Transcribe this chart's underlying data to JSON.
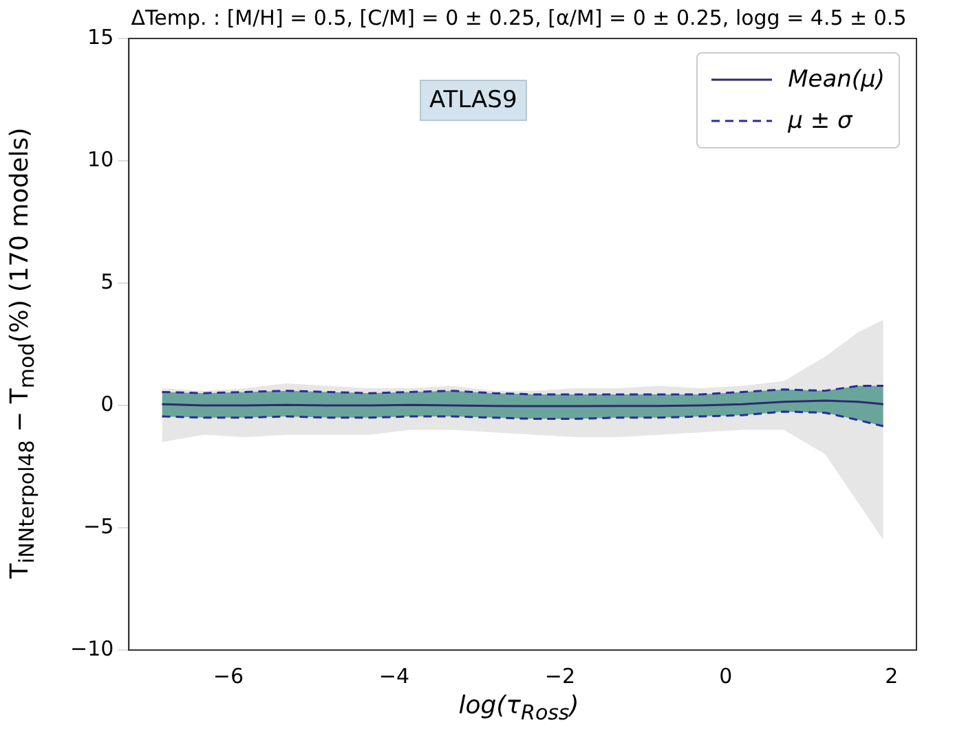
{
  "chart_data": {
    "type": "line",
    "title": "ΔTemp. : [M/H] = 0.5, [C/M] = 0 ± 0.25, [α/M] = 0 ± 0.25, logg = 4.5 ± 0.5",
    "xlabel": "log(τ$_{Ross}$)",
    "ylabel": "T$_{iNNterpol48}$ − T$_{mod}$(%) (170 models)",
    "annotations": [
      "ATLAS9"
    ],
    "x": [
      -6.8,
      -6.3,
      -5.8,
      -5.3,
      -4.8,
      -4.3,
      -3.8,
      -3.3,
      -2.8,
      -2.3,
      -1.8,
      -1.3,
      -0.8,
      -0.3,
      0.2,
      0.7,
      1.2,
      1.6,
      1.9
    ],
    "series": [
      {
        "name": "Mean(μ)",
        "color": "#2e2a6e",
        "line_style": "solid",
        "values": [
          0.05,
          0.0,
          0.0,
          0.02,
          0.0,
          0.0,
          0.02,
          0.0,
          -0.02,
          -0.03,
          -0.03,
          -0.02,
          -0.02,
          0.0,
          0.05,
          0.15,
          0.2,
          0.15,
          0.05
        ],
        "lower": [
          -1.5,
          -1.2,
          -1.3,
          -1.2,
          -1.2,
          -1.2,
          -1.0,
          -1.0,
          -1.1,
          -1.2,
          -1.3,
          -1.3,
          -1.2,
          -1.1,
          -1.0,
          -1.0,
          -2.0,
          -4.0,
          -5.5
        ],
        "upper": [
          0.7,
          0.6,
          0.7,
          0.9,
          0.8,
          0.7,
          0.7,
          0.8,
          0.6,
          0.6,
          0.7,
          0.7,
          0.8,
          0.7,
          0.8,
          1.0,
          2.0,
          3.0,
          3.5
        ]
      },
      {
        "name": "μ ± σ",
        "color": "#2b2b9a",
        "line_style": "dashed",
        "values": [
          0.55,
          0.5,
          0.55,
          0.6,
          0.55,
          0.5,
          0.55,
          0.6,
          0.5,
          0.45,
          0.45,
          0.45,
          0.45,
          0.45,
          0.55,
          0.65,
          0.6,
          0.8,
          0.8
        ],
        "lower": [
          -0.45,
          -0.5,
          -0.5,
          -0.45,
          -0.5,
          -0.5,
          -0.45,
          -0.45,
          -0.5,
          -0.55,
          -0.55,
          -0.5,
          -0.5,
          -0.45,
          -0.4,
          -0.25,
          -0.3,
          -0.6,
          -0.85
        ],
        "upper": [
          0.55,
          0.5,
          0.55,
          0.6,
          0.55,
          0.5,
          0.55,
          0.6,
          0.5,
          0.45,
          0.45,
          0.45,
          0.45,
          0.45,
          0.55,
          0.65,
          0.6,
          0.8,
          0.8
        ]
      },
      {
        "color": "#2b2b9a",
        "line_style": "dashed",
        "values": [
          -0.45,
          -0.5,
          -0.5,
          -0.45,
          -0.5,
          -0.5,
          -0.45,
          -0.45,
          -0.5,
          -0.55,
          -0.55,
          -0.5,
          -0.5,
          -0.45,
          -0.4,
          -0.25,
          -0.3,
          -0.6,
          -0.85
        ]
      }
    ],
    "xlim": [
      -7.2,
      2.3
    ],
    "xticks": [
      -6,
      -4,
      -2,
      0,
      2
    ],
    "ylim": [
      -10,
      15
    ],
    "yticks": [
      -10,
      -5,
      0,
      5,
      10,
      15
    ],
    "grid": false,
    "legend": "top right",
    "marker": "none"
  }
}
